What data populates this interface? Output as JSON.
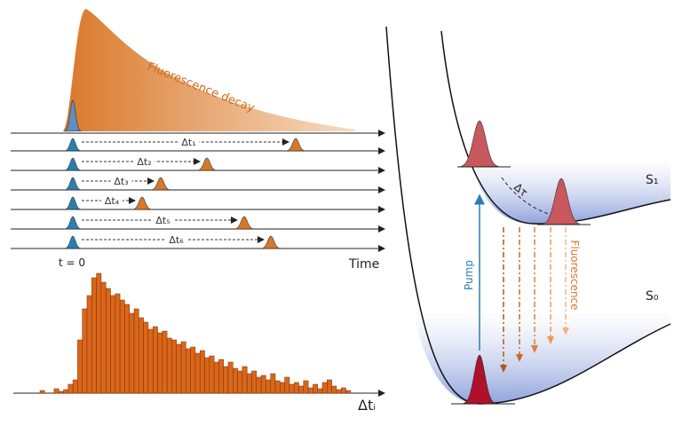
{
  "decay_label": "Fluorescence decay",
  "delays": [
    "Δt₁",
    "Δt₂",
    "Δt₃",
    "Δt₄",
    "Δt₅",
    "Δt₆"
  ],
  "t_zero": "t = 0",
  "time_axis": "Time",
  "histogram": {
    "axis_label": "Δtᵢ",
    "counts": [
      3,
      0,
      0,
      5,
      2,
      4,
      10,
      15,
      60,
      95,
      110,
      130,
      135,
      125,
      118,
      110,
      112,
      105,
      100,
      90,
      95,
      85,
      80,
      72,
      75,
      68,
      70,
      62,
      60,
      55,
      58,
      50,
      52,
      45,
      48,
      40,
      42,
      35,
      38,
      30,
      35,
      28,
      25,
      30,
      22,
      25,
      18,
      20,
      15,
      22,
      14,
      12,
      18,
      10,
      12,
      8,
      14,
      6,
      10,
      5,
      12,
      15,
      8,
      4,
      6,
      3
    ]
  },
  "pump": "Pump",
  "fluorescence": "Fluorescence",
  "relaxation": "Δτ",
  "excited_state": "S₁",
  "ground_state": "S₀"
}
